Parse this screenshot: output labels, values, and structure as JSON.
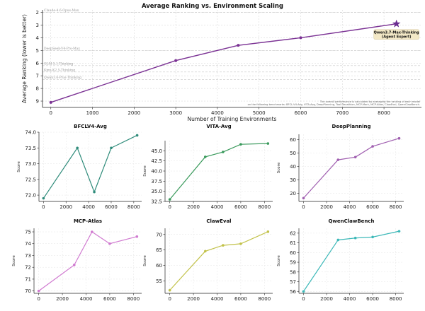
{
  "colors": {
    "main_line": "#7b3294",
    "star": "#6a2c91",
    "callout_bg": "#f3e8c6",
    "grid": "#d0d0d0",
    "refline": "#c8c8c8"
  },
  "chart_data": [
    {
      "id": "main",
      "type": "line",
      "title": "Average Ranking vs. Environment Scaling",
      "xlabel": "Number of Training Environments",
      "ylabel": "Average Ranking (lower is better)",
      "x": [
        0,
        3000,
        4500,
        6000,
        8300
      ],
      "y": [
        9.1,
        5.8,
        4.6,
        4.0,
        2.9
      ],
      "xlim": [
        -200,
        8900
      ],
      "ylim": [
        9.5,
        1.8
      ],
      "y_inverted": true,
      "xticks": [
        0,
        1000,
        2000,
        3000,
        4000,
        5000,
        6000,
        7000,
        8000
      ],
      "yticks": [
        2,
        3,
        4,
        5,
        6,
        7,
        8,
        9
      ],
      "grid": true,
      "reference_lines": [
        {
          "label": "Claude-4.6-Opus-Max",
          "y": 2.0
        },
        {
          "label": "DeepSeek-V4-Pro-Max",
          "y": 5.0
        },
        {
          "label": "GLM-5.1-Thinking",
          "y": 6.2
        },
        {
          "label": "Kimi-K2.5-Thinking",
          "y": 6.7
        },
        {
          "label": "Qwen3.6-Plus-Thinking",
          "y": 7.3
        }
      ],
      "callout": {
        "line1": "Qwen3.7-Max-Thinking",
        "line2": "(Agent Expert)"
      },
      "note_line1": "The overall performance is calculated by averaging the ranking of each model",
      "note_line2": "on the following benchmarks: BFCL-V4-Avg, VITA-Avg, DeepPlanning, Tool Decathlon, MCP-Mark, MCP-Atlas, ClawEval, QwenClawBench."
    },
    {
      "id": "bfcl",
      "type": "line",
      "title": "BFCLV4-Avg",
      "ylabel": "Score",
      "color": "#2e8b7a",
      "x": [
        0,
        3000,
        4500,
        6000,
        8300
      ],
      "y": [
        71.9,
        73.5,
        72.1,
        73.5,
        73.9
      ],
      "ylim": [
        71.8,
        74.0
      ],
      "xlim": [
        -400,
        8700
      ],
      "yticks": [
        "72.0",
        "72.5",
        "73.0",
        "73.5",
        "74.0"
      ],
      "xticks": [
        0,
        2000,
        4000,
        6000,
        8000
      ]
    },
    {
      "id": "vita",
      "type": "line",
      "title": "VITA-Avg",
      "ylabel": "Score",
      "color": "#3a9a5c",
      "x": [
        0,
        3000,
        4500,
        6000,
        8300
      ],
      "y": [
        33.0,
        43.5,
        44.7,
        46.6,
        46.8
      ],
      "ylim": [
        32.5,
        47.5
      ],
      "xlim": [
        -400,
        8700
      ],
      "yticks": [
        "32.5",
        "35.0",
        "37.5",
        "40.0",
        "42.5",
        "45.0"
      ],
      "xticks": [
        0,
        2000,
        4000,
        6000,
        8000
      ]
    },
    {
      "id": "deepplanning",
      "type": "line",
      "title": "DeepPlanning",
      "ylabel": "Score",
      "color": "#a05fb0",
      "x": [
        0,
        3000,
        4500,
        6000,
        8300
      ],
      "y": [
        16.5,
        45.0,
        47.0,
        55.0,
        61.0
      ],
      "ylim": [
        14.0,
        64.0
      ],
      "xlim": [
        -400,
        8700
      ],
      "yticks": [
        "20",
        "30",
        "40",
        "50",
        "60"
      ],
      "xticks": [
        0,
        2000,
        4000,
        6000,
        8000
      ]
    },
    {
      "id": "mcpatlas",
      "type": "line",
      "title": "MCP-Atlas",
      "ylabel": "Score",
      "color": "#d07ad0",
      "x": [
        0,
        3000,
        4500,
        6000,
        8300
      ],
      "y": [
        70.0,
        72.2,
        75.0,
        74.0,
        74.6
      ],
      "ylim": [
        69.8,
        75.3
      ],
      "xlim": [
        -400,
        8700
      ],
      "yticks": [
        "70",
        "71",
        "72",
        "73",
        "74",
        "75"
      ],
      "xticks": [
        0,
        2000,
        4000,
        6000,
        8000
      ]
    },
    {
      "id": "claweval",
      "type": "line",
      "title": "ClawEval",
      "ylabel": "Score",
      "color": "#c2c24a",
      "x": [
        0,
        3000,
        4500,
        6000,
        8300
      ],
      "y": [
        52.0,
        64.6,
        66.5,
        67.0,
        70.9
      ],
      "ylim": [
        51.0,
        72.0
      ],
      "xlim": [
        -400,
        8700
      ],
      "yticks": [
        "55",
        "60",
        "65",
        "70"
      ],
      "xticks": [
        0,
        2000,
        4000,
        6000,
        8000
      ]
    },
    {
      "id": "qwenclawbench",
      "type": "line",
      "title": "QwenClawBench",
      "ylabel": "Score",
      "color": "#3cb8b8",
      "x": [
        0,
        3000,
        4500,
        6000,
        8300
      ],
      "y": [
        56.0,
        61.3,
        61.5,
        61.6,
        62.2
      ],
      "ylim": [
        55.8,
        62.5
      ],
      "xlim": [
        -400,
        8700
      ],
      "yticks": [
        "56",
        "57",
        "58",
        "59",
        "60",
        "61",
        "62"
      ],
      "xticks": [
        0,
        2000,
        4000,
        6000,
        8000
      ]
    }
  ]
}
